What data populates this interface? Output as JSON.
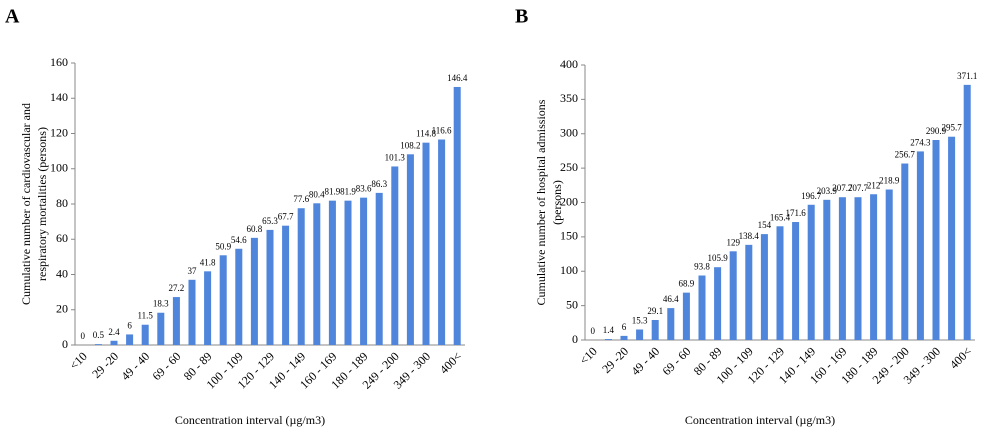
{
  "chart_data": [
    {
      "type": "bar",
      "panel": "A",
      "ylabel": [
        "Cumulative number of cardiovascular and",
        "respiratory mortalities (persons)"
      ],
      "xlabel": "Concentration interval (µg/m3)",
      "categories": [
        "<10",
        null,
        "29 -20",
        null,
        "49 - 40",
        null,
        "69 - 60",
        null,
        "80 - 89",
        null,
        "100 - 109",
        null,
        "120 - 129",
        null,
        "140 - 149",
        null,
        "160 - 169",
        null,
        "180 - 189",
        null,
        "249 - 200",
        null,
        "349 - 300",
        null,
        "400<"
      ],
      "values": [
        0,
        0.5,
        2.4,
        6,
        11.5,
        18.3,
        27.2,
        37,
        41.8,
        50.9,
        54.6,
        60.8,
        65.3,
        67.7,
        77.6,
        80.4,
        81.9,
        81.9,
        83.6,
        86.3,
        101.3,
        108.2,
        114.8,
        116.6,
        146.4
      ],
      "color": "#4f86dc",
      "ylim": [
        0,
        160
      ],
      "yticks": [
        0,
        20,
        40,
        60,
        80,
        100,
        120,
        140,
        160
      ]
    },
    {
      "type": "bar",
      "panel": "B",
      "ylabel": [
        "Cumulative number of hospital admissions",
        "(persons)"
      ],
      "xlabel": "Concentration interval (µg/m3)",
      "categories": [
        "<10",
        null,
        "29 -20",
        null,
        "49 - 40",
        null,
        "69 - 60",
        null,
        "80 - 89",
        null,
        "100 - 109",
        null,
        "120 - 129",
        null,
        "140 - 149",
        null,
        "160 - 169",
        null,
        "180 - 189",
        null,
        "249 - 200",
        null,
        "349 - 300",
        null,
        "400<"
      ],
      "values": [
        0,
        1.4,
        6,
        15.3,
        29.1,
        46.4,
        68.9,
        93.8,
        105.9,
        129,
        138.4,
        154,
        165.4,
        171.6,
        196.7,
        203.9,
        207.7,
        207.7,
        212,
        218.9,
        256.7,
        274.3,
        290.9,
        295.7,
        371.1
      ],
      "color": "#4f86dc",
      "ylim": [
        0,
        400
      ],
      "yticks": [
        0,
        50,
        100,
        150,
        200,
        250,
        300,
        350,
        400
      ]
    }
  ]
}
